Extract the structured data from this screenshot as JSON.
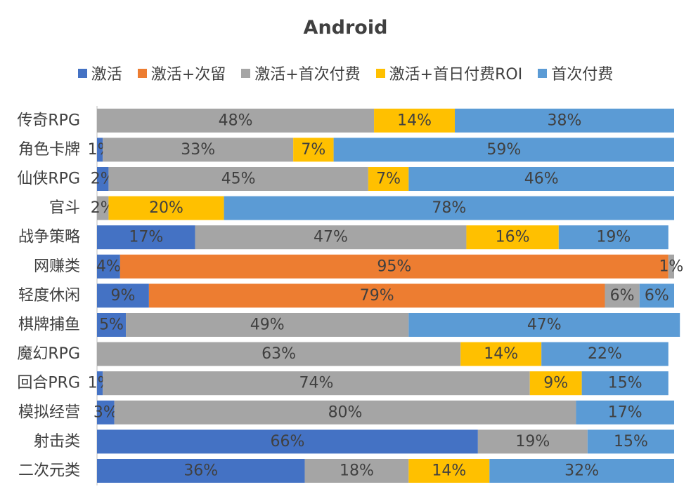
{
  "chart_data": {
    "type": "bar",
    "orientation": "horizontal",
    "stacked": true,
    "percent": true,
    "title": "Android",
    "legend_position": "top",
    "grid": false,
    "xlim": [
      0,
      100
    ],
    "categories": [
      "传奇RPG",
      "角色卡牌",
      "仙侠RPG",
      "官斗",
      "战争策略",
      "网赚类",
      "轻度休闲",
      "棋牌捕鱼",
      "魔幻RPG",
      "回合PRG",
      "模拟经营",
      "射击类",
      "二次元类"
    ],
    "series": [
      {
        "name": "激活",
        "color": "#4472C4",
        "values": [
          0,
          1,
          2,
          0,
          17,
          4,
          9,
          5,
          0,
          1,
          3,
          66,
          36
        ]
      },
      {
        "name": "激活+次留",
        "color": "#ED7D31",
        "values": [
          0,
          0,
          0,
          0,
          0,
          95,
          79,
          0,
          0,
          0,
          0,
          0,
          0
        ]
      },
      {
        "name": "激活+首次付费",
        "color": "#A5A5A5",
        "values": [
          48,
          33,
          45,
          2,
          47,
          1,
          6,
          49,
          63,
          74,
          80,
          19,
          18
        ]
      },
      {
        "name": "激活+首日付费ROI",
        "color": "#FFC000",
        "values": [
          14,
          7,
          7,
          20,
          16,
          0,
          0,
          0,
          14,
          9,
          0,
          0,
          14
        ]
      },
      {
        "name": "首次付费",
        "color": "#5B9BD5",
        "values": [
          38,
          59,
          46,
          78,
          19,
          0,
          6,
          47,
          22,
          15,
          17,
          15,
          32
        ]
      }
    ]
  }
}
